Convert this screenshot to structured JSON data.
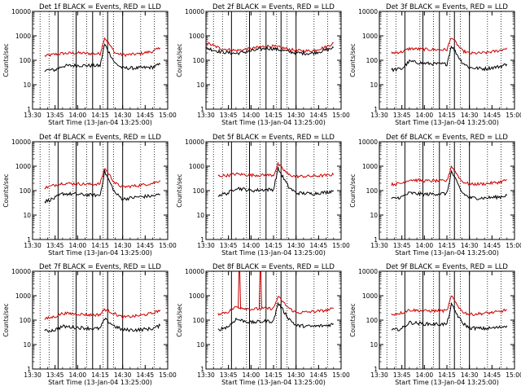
{
  "chart_data": {
    "type": "line",
    "y_scale": "log",
    "ylim": [
      1,
      10000
    ],
    "y_ticks": [
      1,
      10,
      100,
      1000,
      10000
    ],
    "y_tick_labels": [
      "1",
      "10",
      "100",
      "1000",
      "10000"
    ],
    "x_range": [
      "13:30",
      "15:00"
    ],
    "x_ticks": [
      "13:30",
      "13:45",
      "14:00",
      "14:15",
      "14:30",
      "14:45",
      "15:00"
    ],
    "ylabel": "Counts/sec",
    "xlabel": "Start Time (13-Jan-04 13:25:00)",
    "colors": {
      "events": "#000000",
      "lld": "#cc0000"
    },
    "panels": [
      {
        "title": "Det 1f BLACK = Events, RED = LLD",
        "dotted_x": [
          "13:35",
          "13:41",
          "13:57",
          "14:06",
          "14:17",
          "14:24",
          "14:42",
          "14:51"
        ],
        "solid_x": [
          "13:47",
          "13:59",
          "14:10",
          "14:20",
          "14:30"
        ],
        "events_x": [
          "13:38",
          "13:45",
          "13:50",
          "14:00",
          "14:10",
          "14:15",
          "14:18",
          "14:25",
          "14:30",
          "14:40",
          "14:50",
          "14:55"
        ],
        "events": [
          40,
          40,
          58,
          62,
          60,
          60,
          450,
          75,
          48,
          48,
          52,
          68
        ],
        "lld_x": [
          "13:38",
          "13:45",
          "13:50",
          "14:00",
          "14:10",
          "14:15",
          "14:18",
          "14:25",
          "14:30",
          "14:40",
          "14:50",
          "14:55"
        ],
        "lld": [
          150,
          175,
          190,
          200,
          185,
          185,
          850,
          200,
          165,
          180,
          230,
          320
        ]
      },
      {
        "title": "Det 2f BLACK = Events, RED = LLD",
        "dotted_x": [
          "13:35",
          "13:41",
          "13:57",
          "14:06",
          "14:17",
          "14:24",
          "14:42",
          "14:51"
        ],
        "solid_x": [
          "13:47",
          "13:59",
          "14:10",
          "14:20",
          "14:30"
        ],
        "events_x": [
          "13:30",
          "13:40",
          "13:50",
          "14:00",
          "14:10",
          "14:15",
          "14:20",
          "14:30",
          "14:40",
          "14:50",
          "14:55"
        ],
        "events": [
          320,
          220,
          190,
          240,
          310,
          300,
          260,
          200,
          190,
          260,
          330
        ],
        "lld_x": [
          "13:30",
          "13:40",
          "13:50",
          "14:00",
          "14:10",
          "14:15",
          "14:20",
          "14:30",
          "14:40",
          "14:50",
          "14:55"
        ],
        "lld": [
          520,
          300,
          250,
          300,
          380,
          370,
          330,
          250,
          240,
          350,
          520
        ]
      },
      {
        "title": "Det 3f BLACK = Events, RED = LLD",
        "dotted_x": [
          "13:35",
          "13:41",
          "13:57",
          "14:06",
          "14:17",
          "14:24",
          "14:42",
          "14:51"
        ],
        "solid_x": [
          "13:47",
          "13:59",
          "14:10",
          "14:20",
          "14:30"
        ],
        "events_x": [
          "13:38",
          "13:45",
          "13:50",
          "14:00",
          "14:10",
          "14:15",
          "14:18",
          "14:25",
          "14:30",
          "14:40",
          "14:50",
          "14:55"
        ],
        "events": [
          40,
          45,
          90,
          75,
          70,
          70,
          400,
          85,
          50,
          45,
          55,
          70
        ],
        "lld_x": [
          "13:38",
          "13:45",
          "13:50",
          "14:00",
          "14:10",
          "14:15",
          "14:18",
          "14:25",
          "14:30",
          "14:40",
          "14:50",
          "14:55"
        ],
        "lld": [
          200,
          220,
          300,
          280,
          270,
          270,
          900,
          250,
          190,
          200,
          250,
          320
        ]
      },
      {
        "title": "Det 4f BLACK = Events, RED = LLD",
        "dotted_x": [
          "13:35",
          "13:41",
          "13:57",
          "14:06",
          "14:17",
          "14:24",
          "14:42",
          "14:51"
        ],
        "solid_x": [
          "13:47",
          "13:59",
          "14:10",
          "14:20",
          "14:30"
        ],
        "events_x": [
          "13:38",
          "13:45",
          "13:50",
          "14:00",
          "14:10",
          "14:15",
          "14:18",
          "14:25",
          "14:30",
          "14:40",
          "14:50",
          "14:55"
        ],
        "events": [
          35,
          50,
          75,
          70,
          65,
          65,
          600,
          80,
          45,
          55,
          60,
          70
        ],
        "lld_x": [
          "13:38",
          "13:45",
          "13:50",
          "14:00",
          "14:10",
          "14:15",
          "14:18",
          "14:25",
          "14:30",
          "14:40",
          "14:50",
          "14:55"
        ],
        "lld": [
          130,
          170,
          200,
          190,
          180,
          190,
          850,
          200,
          140,
          160,
          200,
          260
        ]
      },
      {
        "title": "Det 5f BLACK = Events, RED = LLD",
        "dotted_x": [
          "13:35",
          "13:41",
          "13:57",
          "14:06",
          "14:17",
          "14:24",
          "14:42",
          "14:51"
        ],
        "solid_x": [
          "13:47",
          "13:59",
          "14:10",
          "14:20",
          "14:30"
        ],
        "events_x": [
          "13:38",
          "13:45",
          "13:50",
          "14:00",
          "14:10",
          "14:15",
          "14:18",
          "14:25",
          "14:30",
          "14:40",
          "14:50",
          "14:55"
        ],
        "events": [
          65,
          80,
          130,
          100,
          110,
          110,
          800,
          140,
          80,
          75,
          85,
          100
        ],
        "lld_x": [
          "13:38",
          "13:45",
          "13:50",
          "14:00",
          "14:10",
          "14:15",
          "14:18",
          "14:25",
          "14:30",
          "14:40",
          "14:50",
          "14:55"
        ],
        "lld": [
          400,
          420,
          480,
          430,
          430,
          430,
          1200,
          450,
          380,
          390,
          420,
          450
        ]
      },
      {
        "title": "Det 6f BLACK = Events, RED = LLD",
        "dotted_x": [
          "13:35",
          "13:41",
          "13:57",
          "14:06",
          "14:17",
          "14:24",
          "14:42",
          "14:51"
        ],
        "solid_x": [
          "13:47",
          "13:59",
          "14:10",
          "14:20",
          "14:30"
        ],
        "events_x": [
          "13:38",
          "13:45",
          "13:50",
          "14:00",
          "14:10",
          "14:15",
          "14:18",
          "14:25",
          "14:30",
          "14:40",
          "14:50",
          "14:55"
        ],
        "events": [
          45,
          55,
          80,
          70,
          75,
          75,
          600,
          85,
          50,
          50,
          55,
          65
        ],
        "lld_x": [
          "13:38",
          "13:45",
          "13:50",
          "14:00",
          "14:10",
          "14:15",
          "14:18",
          "14:25",
          "14:30",
          "14:40",
          "14:50",
          "14:55"
        ],
        "lld": [
          180,
          200,
          280,
          250,
          250,
          250,
          1000,
          240,
          180,
          190,
          220,
          280
        ]
      },
      {
        "title": "Det 7f BLACK = Events, RED = LLD",
        "dotted_x": [
          "13:35",
          "13:41",
          "13:57",
          "14:06",
          "14:17",
          "14:24",
          "14:42",
          "14:51"
        ],
        "solid_x": [
          "13:47",
          "13:59",
          "14:10",
          "14:20",
          "14:30"
        ],
        "events_x": [
          "13:38",
          "13:45",
          "13:50",
          "14:00",
          "14:10",
          "14:15",
          "14:18",
          "14:25",
          "14:30",
          "14:40",
          "14:50",
          "14:55"
        ],
        "events": [
          35,
          40,
          55,
          50,
          45,
          45,
          110,
          55,
          40,
          40,
          45,
          60
        ],
        "lld_x": [
          "13:38",
          "13:45",
          "13:50",
          "14:00",
          "14:10",
          "14:15",
          "14:18",
          "14:25",
          "14:30",
          "14:40",
          "14:50",
          "14:55"
        ],
        "lld": [
          110,
          140,
          190,
          180,
          160,
          170,
          280,
          180,
          130,
          150,
          190,
          260
        ]
      },
      {
        "title": "Det 8f BLACK = Events, RED = LLD",
        "dotted_x": [
          "13:35",
          "13:41",
          "13:57",
          "14:06",
          "14:17",
          "14:24",
          "14:42",
          "14:51"
        ],
        "solid_x": [
          "13:47",
          "13:59",
          "14:10",
          "14:20",
          "14:30"
        ],
        "events_x": [
          "13:38",
          "13:45",
          "13:50",
          "14:00",
          "14:10",
          "14:15",
          "14:18",
          "14:25",
          "14:30",
          "14:40",
          "14:50",
          "14:55"
        ],
        "events": [
          40,
          55,
          110,
          80,
          90,
          90,
          500,
          120,
          60,
          55,
          60,
          70
        ],
        "lld_x": [
          "13:38",
          "13:45",
          "13:50",
          "14:00",
          "14:10",
          "14:15",
          "14:18",
          "14:25",
          "14:30",
          "14:40",
          "14:50",
          "14:55"
        ],
        "lld": [
          180,
          220,
          350,
          280,
          300,
          300,
          900,
          320,
          200,
          220,
          250,
          300
        ],
        "lld_spikes_x": [
          "13:52",
          "14:06"
        ]
      },
      {
        "title": "Det 9f BLACK = Events, RED = LLD",
        "dotted_x": [
          "13:35",
          "13:41",
          "13:57",
          "14:06",
          "14:17",
          "14:24",
          "14:42",
          "14:51"
        ],
        "solid_x": [
          "13:47",
          "13:59",
          "14:10",
          "14:20",
          "14:30"
        ],
        "events_x": [
          "13:38",
          "13:45",
          "13:50",
          "14:00",
          "14:10",
          "14:15",
          "14:18",
          "14:25",
          "14:30",
          "14:40",
          "14:50",
          "14:55"
        ],
        "events": [
          38,
          45,
          80,
          70,
          68,
          68,
          420,
          80,
          48,
          45,
          50,
          60
        ],
        "lld_x": [
          "13:38",
          "13:45",
          "13:50",
          "14:00",
          "14:10",
          "14:15",
          "14:18",
          "14:25",
          "14:30",
          "14:40",
          "14:50",
          "14:55"
        ],
        "lld": [
          170,
          200,
          260,
          240,
          240,
          240,
          950,
          230,
          170,
          190,
          220,
          270
        ]
      }
    ]
  }
}
